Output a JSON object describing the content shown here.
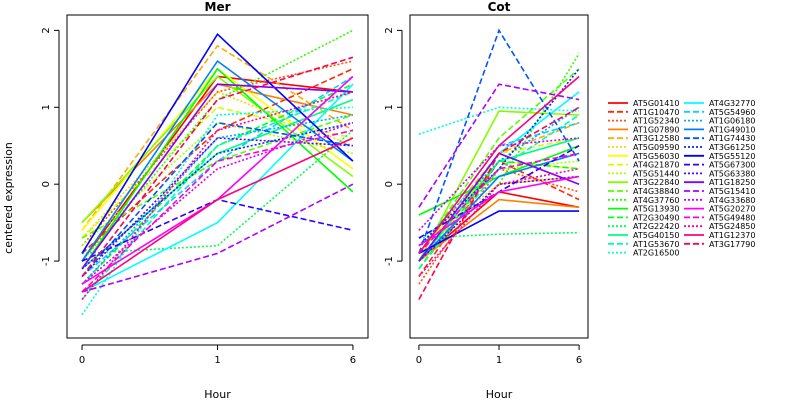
{
  "chart_data": {
    "type": "line",
    "ylabel": "centered expression",
    "xlabel": "Hour",
    "x": [
      0,
      1,
      6
    ],
    "x_tick_labels": [
      "0",
      "1",
      "6"
    ],
    "ylim": [
      -2.0,
      2.2
    ],
    "y_ticks": [
      -1,
      0,
      1,
      2
    ],
    "y_tick_labels": [
      "-1",
      "0",
      "1",
      "2"
    ],
    "grid": false,
    "legend_position": "right",
    "panels": [
      {
        "title": "Mer"
      },
      {
        "title": "Cot"
      }
    ],
    "series": [
      {
        "name": "AT5G01410",
        "color": "#ff0000",
        "dash": "solid",
        "mer": [
          -1.0,
          1.4,
          1.2
        ],
        "cot": [
          -1.0,
          -0.1,
          -0.3
        ]
      },
      {
        "name": "AT1G10470",
        "color": "#ff2a00",
        "dash": "dashed",
        "mer": [
          -0.9,
          0.7,
          1.5
        ],
        "cot": [
          -1.2,
          0.3,
          -0.2
        ]
      },
      {
        "name": "AT1G52340",
        "color": "#ff5500",
        "dash": "dotted",
        "mer": [
          -0.8,
          1.2,
          1.6
        ],
        "cot": [
          -1.3,
          0.2,
          -0.1
        ]
      },
      {
        "name": "AT1G07890",
        "color": "#ff8000",
        "dash": "solid",
        "mer": [
          -0.5,
          1.3,
          0.9
        ],
        "cot": [
          -1.0,
          -0.2,
          -0.3
        ]
      },
      {
        "name": "AT3G12580",
        "color": "#ffaa00",
        "dash": "dashed",
        "mer": [
          -0.6,
          1.8,
          0.7
        ],
        "cot": [
          -0.9,
          0.4,
          0.8
        ]
      },
      {
        "name": "AT5G09590",
        "color": "#ffd400",
        "dash": "dotted",
        "mer": [
          -0.7,
          1.2,
          0.5
        ],
        "cot": [
          -0.8,
          0.0,
          0.1
        ]
      },
      {
        "name": "AT5G56030",
        "color": "#ffff00",
        "dash": "solid",
        "mer": [
          -0.6,
          1.5,
          0.2
        ],
        "cot": [
          -0.9,
          0.3,
          0.2
        ]
      },
      {
        "name": "AT4G21870",
        "color": "#d4ff00",
        "dash": "dashed",
        "mer": [
          -0.7,
          1.0,
          0.6
        ],
        "cot": [
          -1.1,
          0.4,
          0.6
        ]
      },
      {
        "name": "AT5G51440",
        "color": "#aaff00",
        "dash": "dotted",
        "mer": [
          -0.8,
          0.8,
          0.4
        ],
        "cot": [
          -1.0,
          0.2,
          0.3
        ]
      },
      {
        "name": "AT3G22840",
        "color": "#80ff00",
        "dash": "solid",
        "mer": [
          -0.5,
          1.4,
          0.1
        ],
        "cot": [
          -1.0,
          0.95,
          0.9
        ]
      },
      {
        "name": "AT4G38840",
        "color": "#55ff00",
        "dash": "dashed",
        "mer": [
          -0.7,
          0.3,
          0.9
        ],
        "cot": [
          -0.9,
          0.6,
          1.5
        ]
      },
      {
        "name": "AT4G37760",
        "color": "#2aff00",
        "dash": "dotted",
        "mer": [
          -1.0,
          1.1,
          2.0
        ],
        "cot": [
          -1.0,
          0.0,
          1.7
        ]
      },
      {
        "name": "AT5G13930",
        "color": "#00ff00",
        "dash": "solid",
        "mer": [
          -1.1,
          1.5,
          -0.1
        ],
        "cot": [
          -0.4,
          0.1,
          0.5
        ]
      },
      {
        "name": "AT2G30490",
        "color": "#00ff2a",
        "dash": "dashed",
        "mer": [
          -1.3,
          0.5,
          1.3
        ],
        "cot": [
          -1.1,
          0.3,
          0.2
        ]
      },
      {
        "name": "AT2G22420",
        "color": "#00ff55",
        "dash": "dotted",
        "mer": [
          -0.9,
          -0.8,
          0.7
        ],
        "cot": [
          -0.7,
          -0.65,
          -0.63
        ]
      },
      {
        "name": "AT5G40150",
        "color": "#00ff80",
        "dash": "solid",
        "mer": [
          -1.1,
          0.4,
          1.1
        ],
        "cot": [
          -1.0,
          0.3,
          0.6
        ]
      },
      {
        "name": "AT1G53670",
        "color": "#00ffaa",
        "dash": "dashed",
        "mer": [
          -1.5,
          0.5,
          1.2
        ],
        "cot": [
          -1.1,
          0.2,
          0.9
        ]
      },
      {
        "name": "AT2G16500",
        "color": "#00ffd4",
        "dash": "dotted",
        "mer": [
          -1.7,
          0.9,
          1.0
        ],
        "cot": [
          0.65,
          1.0,
          0.95
        ]
      },
      {
        "name": "AT4G32770",
        "color": "#00ffff",
        "dash": "solid",
        "mer": [
          -1.4,
          -0.5,
          1.3
        ],
        "cot": [
          -1.0,
          0.4,
          1.2
        ]
      },
      {
        "name": "AT5G54960",
        "color": "#00d4ff",
        "dash": "dashed",
        "mer": [
          -1.2,
          0.3,
          1.4
        ],
        "cot": [
          -0.9,
          0.5,
          0.8
        ]
      },
      {
        "name": "AT1G06180",
        "color": "#00aaff",
        "dash": "dotted",
        "mer": [
          -1.3,
          0.6,
          0.9
        ],
        "cot": [
          -0.8,
          0.3,
          1.0
        ]
      },
      {
        "name": "AT1G49010",
        "color": "#0080ff",
        "dash": "solid",
        "mer": [
          -1.0,
          1.6,
          0.3
        ],
        "cot": [
          -1.0,
          0.1,
          0.4
        ]
      },
      {
        "name": "AT1G74430",
        "color": "#0055ff",
        "dash": "dashed",
        "mer": [
          -1.2,
          0.8,
          0.5
        ],
        "cot": [
          -0.9,
          2.0,
          0.3
        ]
      },
      {
        "name": "AT3G61250",
        "color": "#002aff",
        "dash": "dotted",
        "mer": [
          -1.1,
          0.4,
          0.8
        ],
        "cot": [
          -0.8,
          0.2,
          1.5
        ]
      },
      {
        "name": "AT5G55120",
        "color": "#0000ff",
        "dash": "solid",
        "mer": [
          -0.9,
          1.95,
          0.3
        ],
        "cot": [
          -0.9,
          -0.35,
          -0.35
        ]
      },
      {
        "name": "AT5G67300",
        "color": "#2a00ff",
        "dash": "dashed",
        "mer": [
          -1.0,
          -0.2,
          -0.6
        ],
        "cot": [
          -0.7,
          -0.1,
          0.5
        ]
      },
      {
        "name": "AT5G63380",
        "color": "#5500ff",
        "dash": "dotted",
        "mer": [
          -1.2,
          0.6,
          0.5
        ],
        "cot": [
          -1.0,
          0.0,
          0.1
        ]
      },
      {
        "name": "AT1G18250",
        "color": "#8000ff",
        "dash": "solid",
        "mer": [
          -1.1,
          1.3,
          1.2
        ],
        "cot": [
          -1.0,
          0.4,
          0.0
        ]
      },
      {
        "name": "AT5G15410",
        "color": "#aa00ff",
        "dash": "dashed",
        "mer": [
          -1.4,
          -0.9,
          0.0
        ],
        "cot": [
          -0.3,
          1.3,
          1.1
        ]
      },
      {
        "name": "AT4G33680",
        "color": "#d400ff",
        "dash": "dotted",
        "mer": [
          -1.3,
          0.2,
          0.8
        ],
        "cot": [
          -0.6,
          0.5,
          0.6
        ]
      },
      {
        "name": "AT5G20270",
        "color": "#ff00ff",
        "dash": "solid",
        "mer": [
          -1.3,
          -0.2,
          1.4
        ],
        "cot": [
          -0.8,
          -0.1,
          0.1
        ]
      },
      {
        "name": "AT5G49480",
        "color": "#ff00d4",
        "dash": "dashed",
        "mer": [
          -1.4,
          0.3,
          0.7
        ],
        "cot": [
          -0.9,
          0.2,
          0.4
        ]
      },
      {
        "name": "AT5G24850",
        "color": "#ff00aa",
        "dash": "dotted",
        "mer": [
          -1.5,
          0.7,
          1.2
        ],
        "cot": [
          -1.2,
          0.0,
          0.2
        ]
      },
      {
        "name": "AT1G12370",
        "color": "#ff0080",
        "dash": "solid",
        "mer": [
          -1.4,
          -0.2,
          0.6
        ],
        "cot": [
          -0.9,
          0.5,
          1.4
        ]
      },
      {
        "name": "AT3G17790",
        "color": "#ff0055",
        "dash": "dashed",
        "mer": [
          -1.2,
          1.1,
          1.65
        ],
        "cot": [
          -1.5,
          0.4,
          1.0
        ]
      }
    ]
  }
}
